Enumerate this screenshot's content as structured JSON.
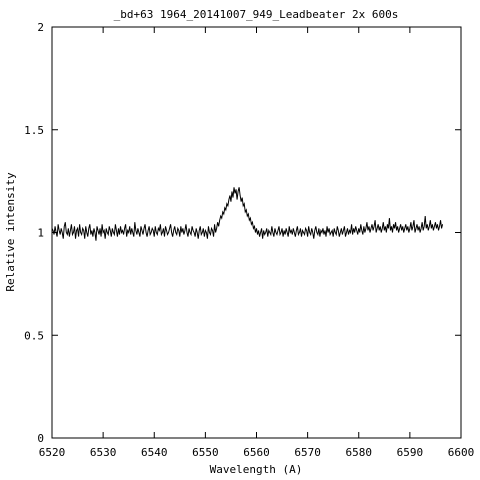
{
  "chart_data": {
    "type": "line",
    "title": "_bd+63 1964_20141007_949_Leadbeater  2x 600s",
    "xlabel": "Wavelength (A)",
    "ylabel": "Relative intensity",
    "xlim": [
      6520,
      6600
    ],
    "ylim": [
      0,
      2
    ],
    "x_ticks": [
      6520,
      6530,
      6540,
      6550,
      6560,
      6570,
      6580,
      6590,
      6600
    ],
    "y_ticks": [
      0,
      0.5,
      1,
      1.5,
      2
    ],
    "y_tick_labels": [
      "0",
      "0.5",
      "1",
      "1.5",
      "2"
    ],
    "grid": false,
    "legend": "none",
    "series": [
      {
        "x_start": 6520,
        "x_step": 0.2,
        "values": [
          1.02,
          1.01,
          0.99,
          1.03,
          1.0,
          0.98,
          1.04,
          1.01,
          0.99,
          1.02,
          1.0,
          0.97,
          1.03,
          1.05,
          1.0,
          0.99,
          1.02,
          0.98,
          1.01,
          1.04,
          0.99,
          1.0,
          1.03,
          0.97,
          1.01,
          1.02,
          0.98,
          1.04,
          1.0,
          0.99,
          1.02,
          1.01,
          0.97,
          1.03,
          1.0,
          0.98,
          1.02,
          1.04,
          0.99,
          1.01,
          0.98,
          1.02,
          1.0,
          0.96,
          1.03,
          1.01,
          0.99,
          1.02,
          0.98,
          1.04,
          1.0,
          1.01,
          0.97,
          1.02,
          1.0,
          0.99,
          1.03,
          1.01,
          0.98,
          1.02,
          1.0,
          0.99,
          1.04,
          1.01,
          0.98,
          1.02,
          0.99,
          1.03,
          1.0,
          1.01,
          0.99,
          1.02,
          1.04,
          0.98,
          1.01,
          1.0,
          1.03,
          0.99,
          1.02,
          1.0,
          0.98,
          1.05,
          1.01,
          0.99,
          1.02,
          1.0,
          0.98,
          1.03,
          1.01,
          0.99,
          1.02,
          1.04,
          1.0,
          0.98,
          1.01,
          1.03,
          0.99,
          1.0,
          1.02,
          1.01,
          0.98,
          1.03,
          1.0,
          0.99,
          1.02,
          1.01,
          1.04,
          0.99,
          1.0,
          1.02,
          0.98,
          1.03,
          1.01,
          0.99,
          1.0,
          1.02,
          1.04,
          1.0,
          0.98,
          1.01,
          1.03,
          1.0,
          0.99,
          1.02,
          1.01,
          0.98,
          1.03,
          1.0,
          1.02,
          0.99,
          1.01,
          1.04,
          1.0,
          0.98,
          1.02,
          1.0,
          0.99,
          1.03,
          1.01,
          1.0,
          0.98,
          1.02,
          1.0,
          0.97,
          1.01,
          1.03,
          0.99,
          1.0,
          1.02,
          0.98,
          1.01,
          1.0,
          0.97,
          1.03,
          1.0,
          0.99,
          1.02,
          1.01,
          0.98,
          1.04,
          1.0,
          1.02,
          1.05,
          1.03,
          1.06,
          1.08,
          1.07,
          1.1,
          1.09,
          1.12,
          1.11,
          1.14,
          1.13,
          1.16,
          1.18,
          1.15,
          1.2,
          1.17,
          1.22,
          1.19,
          1.21,
          1.16,
          1.2,
          1.22,
          1.18,
          1.15,
          1.17,
          1.13,
          1.14,
          1.1,
          1.11,
          1.08,
          1.09,
          1.06,
          1.07,
          1.04,
          1.05,
          1.02,
          1.03,
          1.0,
          1.02,
          0.99,
          1.01,
          0.98,
          1.0,
          1.02,
          0.97,
          1.01,
          0.99,
          1.0,
          1.02,
          0.98,
          1.01,
          1.0,
          0.99,
          1.03,
          1.0,
          0.98,
          1.02,
          1.0,
          0.99,
          1.01,
          1.03,
          0.99,
          1.0,
          1.02,
          0.98,
          1.01,
          0.99,
          1.02,
          1.0,
          0.98,
          1.03,
          1.0,
          1.01,
          0.99,
          1.02,
          1.0,
          0.98,
          1.01,
          1.03,
          0.99,
          1.0,
          1.02,
          0.98,
          1.01,
          1.0,
          0.99,
          1.02,
          1.01,
          0.98,
          1.03,
          1.0,
          0.99,
          1.02,
          1.0,
          0.97,
          1.01,
          1.03,
          1.0,
          0.99,
          1.02,
          0.98,
          1.01,
          1.0,
          1.02,
          0.99,
          1.01,
          0.98,
          1.03,
          1.0,
          1.02,
          0.99,
          1.0,
          1.01,
          0.98,
          1.02,
          1.0,
          0.99,
          1.03,
          1.01,
          0.98,
          1.0,
          1.02,
          0.99,
          1.01,
          1.03,
          0.98,
          1.0,
          1.02,
          0.99,
          1.01,
          1.0,
          1.04,
          0.99,
          1.02,
          1.0,
          1.03,
          1.01,
          0.99,
          1.02,
          1.0,
          1.04,
          1.01,
          0.99,
          1.03,
          1.0,
          1.02,
          1.05,
          1.01,
          1.03,
          1.0,
          1.02,
          1.04,
          1.01,
          1.03,
          1.06,
          1.0,
          1.02,
          1.04,
          1.01,
          1.03,
          1.0,
          1.02,
          1.05,
          1.01,
          1.03,
          1.0,
          1.04,
          1.02,
          1.07,
          1.01,
          1.03,
          1.0,
          1.04,
          1.02,
          1.05,
          1.01,
          1.03,
          1.0,
          1.02,
          1.04,
          1.01,
          1.03,
          1.0,
          1.02,
          1.04,
          1.01,
          1.03,
          1.0,
          1.02,
          1.05,
          1.01,
          1.03,
          1.06,
          1.0,
          1.02,
          1.04,
          1.01,
          1.03,
          1.0,
          1.02,
          1.05,
          1.01,
          1.03,
          1.08,
          1.02,
          1.04,
          1.01,
          1.03,
          1.06,
          1.02,
          1.04,
          1.01,
          1.03,
          1.05,
          1.02,
          1.04,
          1.01,
          1.03,
          1.06,
          1.02,
          1.04
        ]
      }
    ]
  }
}
